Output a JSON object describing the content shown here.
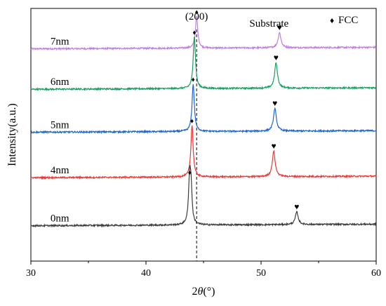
{
  "chart_data": {
    "type": "line",
    "title": "",
    "xlabel_prefix": "2",
    "xlabel_theta": "θ",
    "xlabel_suffix": "(°)",
    "ylabel": "Intensity(a.u.)",
    "xlim": [
      30,
      60
    ],
    "x_ticks": [
      30,
      40,
      50,
      60
    ],
    "y_tick_labels": false,
    "grid": false,
    "reference_line_x": 44.4,
    "legend": {
      "symbol": "♦",
      "label": "FCC",
      "placement": "top-right"
    },
    "annotations": [
      {
        "text": "(200)",
        "x": 44.4
      },
      {
        "text": "Substrate",
        "x": 51.3
      }
    ],
    "series": [
      {
        "name": "7nm",
        "color": "#bf7fe0",
        "baseline": 0.84,
        "fcc_peak": {
          "x": 44.4,
          "height": 0.125
        },
        "substrate_peak": {
          "x": 51.6,
          "height": 0.06
        }
      },
      {
        "name": "6nm",
        "color": "#1a9e5f",
        "baseline": 0.68,
        "fcc_peak": {
          "x": 44.2,
          "height": 0.205
        },
        "substrate_peak": {
          "x": 51.3,
          "height": 0.1
        }
      },
      {
        "name": "5nm",
        "color": "#1f67cc",
        "baseline": 0.51,
        "fcc_peak": {
          "x": 44.1,
          "height": 0.188
        },
        "substrate_peak": {
          "x": 51.2,
          "height": 0.09
        }
      },
      {
        "name": "4nm",
        "color": "#e63b3b",
        "baseline": 0.33,
        "fcc_peak": {
          "x": 44.0,
          "height": 0.205
        },
        "substrate_peak": {
          "x": 51.1,
          "height": 0.1
        }
      },
      {
        "name": "0nm",
        "color": "#3c3c3c",
        "baseline": 0.14,
        "fcc_peak": {
          "x": 43.8,
          "height": 0.19
        },
        "substrate_peak": {
          "x": 53.1,
          "height": 0.05
        }
      }
    ],
    "marker_symbols": {
      "fcc": "♦",
      "substrate": "♥"
    }
  }
}
